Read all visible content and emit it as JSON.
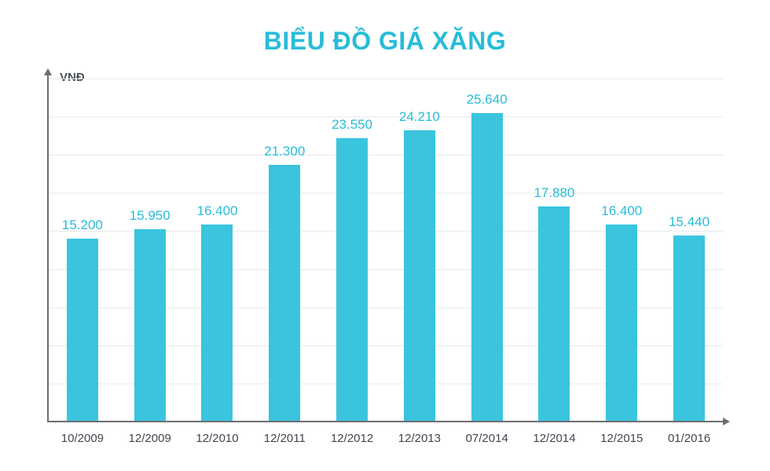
{
  "colors": {
    "accent": "#28bcd9",
    "bar": "#3ac4de",
    "axis": "#6d6e71",
    "gridline": "#e8e9eb",
    "category_label": "#40454e"
  },
  "chart_data": {
    "type": "bar",
    "title": "BIỂU ĐỒ GIÁ XĂNG",
    "xlabel": "",
    "ylabel": "VNĐ",
    "categories": [
      "10/2009",
      "12/2009",
      "12/2010",
      "12/2011",
      "12/2012",
      "12/2013",
      "07/2014",
      "12/2014",
      "12/2015",
      "01/2016"
    ],
    "values": [
      15200,
      15950,
      16400,
      21300,
      23550,
      24210,
      25640,
      17880,
      16400,
      15440
    ],
    "value_labels": [
      "15.200",
      "15.950",
      "16.400",
      "21.300",
      "23.550",
      "24.210",
      "25.640",
      "17.880",
      "16.400",
      "15.440"
    ],
    "ylim": [
      0,
      28500
    ],
    "grid": true,
    "legend": false
  }
}
